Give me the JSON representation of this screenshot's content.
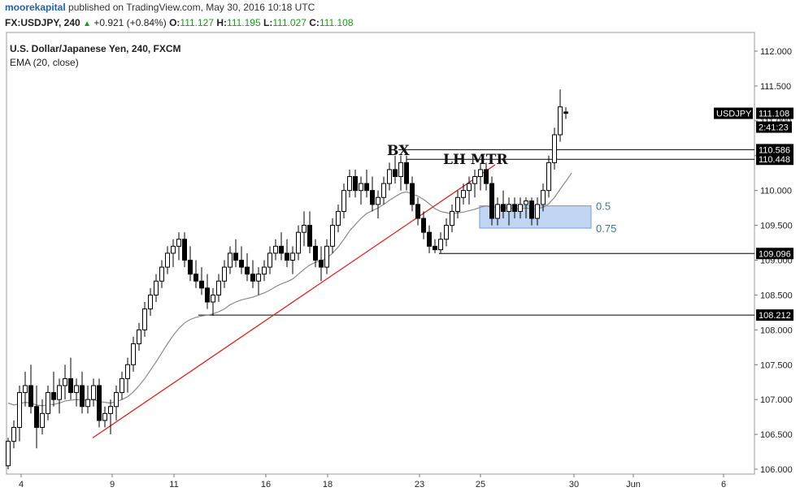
{
  "header": {
    "user": "moorekapital",
    "published_text": "published on TradingView.com, May 30, 2016 10:18 UTC",
    "symbol": "FX:USDJPY, 240",
    "change": "+0.921 (+0.84%)",
    "ohlc": [
      {
        "label": "O:",
        "value": "111.127"
      },
      {
        "label": "H:",
        "value": "111.195"
      },
      {
        "label": "L:",
        "value": "111.027"
      },
      {
        "label": "C:",
        "value": "111.108"
      }
    ]
  },
  "legend": {
    "title": "U.S. Dollar/Japanese Yen, 240, FXCM",
    "indicator": "EMA (20, close)"
  },
  "colors": {
    "up_candle": "#ffffff",
    "down_candle": "#000000",
    "trendline": "#e8201a",
    "ema": "#8a8a8a",
    "fib_zone": "#a9c7ee",
    "fib_text": "#3a75b8",
    "price_label_bg": "#000000"
  },
  "chart_data": {
    "type": "candlestick",
    "title": "U.S. Dollar/Japanese Yen, 240, FXCM",
    "y_range": [
      106.0,
      112.0
    ],
    "y_ticks": [
      "112.000",
      "111.500",
      "111.000",
      "110.500",
      "110.000",
      "109.500",
      "109.000",
      "108.500",
      "108.000",
      "107.500",
      "107.000",
      "106.500",
      "106.000"
    ],
    "x_ticks": [
      "4",
      "9",
      "11",
      "16",
      "18",
      "23",
      "25",
      "30",
      "Jun",
      "6"
    ],
    "price_labels": [
      {
        "text": "USDJPY",
        "value": 111.108,
        "tag": "symbol"
      },
      {
        "text": "111.108",
        "value": 111.108,
        "tag": "last"
      },
      {
        "text": "2:41:23",
        "value": 110.9,
        "tag": "countdown"
      },
      {
        "text": "110.586",
        "value": 110.586,
        "tag": "level"
      },
      {
        "text": "110.448",
        "value": 110.448,
        "tag": "level"
      },
      {
        "text": "109.096",
        "value": 109.096,
        "tag": "level"
      },
      {
        "text": "108.212",
        "value": 108.212,
        "tag": "level"
      }
    ],
    "horizontal_levels": [
      110.586,
      110.448,
      109.096,
      108.212
    ],
    "annotations": [
      {
        "text": "BX"
      },
      {
        "text": "LH MTR"
      }
    ],
    "fib_zone": {
      "top": 109.78,
      "bottom": 109.46,
      "levels": [
        {
          "label": "0.5",
          "value": 109.78
        },
        {
          "label": "0.75",
          "value": 109.46
        }
      ]
    },
    "trendline": {
      "from_value": 106.45,
      "to_value": 110.37
    },
    "series": [
      {
        "name": "USDJPY",
        "ohlc": [
          [
            106.05,
            106.45,
            106.0,
            106.4
          ],
          [
            106.4,
            106.7,
            106.3,
            106.6
          ],
          [
            106.6,
            107.2,
            106.4,
            107.1
          ],
          [
            107.1,
            107.4,
            106.9,
            107.2
          ],
          [
            107.2,
            107.5,
            106.8,
            106.9
          ],
          [
            106.9,
            107.2,
            106.3,
            106.6
          ],
          [
            106.6,
            107.0,
            106.5,
            106.8
          ],
          [
            106.8,
            107.2,
            106.7,
            107.1
          ],
          [
            107.1,
            107.4,
            106.9,
            107.0
          ],
          [
            107.0,
            107.3,
            106.8,
            107.2
          ],
          [
            107.2,
            107.5,
            107.0,
            107.3
          ],
          [
            107.3,
            107.6,
            107.0,
            107.1
          ],
          [
            107.1,
            107.3,
            106.9,
            107.2
          ],
          [
            107.2,
            107.4,
            106.8,
            106.9
          ],
          [
            106.9,
            107.2,
            106.8,
            107.0
          ],
          [
            107.0,
            107.3,
            106.9,
            107.2
          ],
          [
            107.2,
            107.3,
            106.6,
            106.7
          ],
          [
            106.7,
            106.9,
            106.6,
            106.8
          ],
          [
            106.8,
            107.0,
            106.5,
            106.9
          ],
          [
            106.9,
            107.2,
            106.7,
            107.1
          ],
          [
            107.1,
            107.4,
            107.0,
            107.3
          ],
          [
            107.3,
            107.6,
            107.1,
            107.5
          ],
          [
            107.5,
            107.9,
            107.4,
            107.8
          ],
          [
            107.8,
            108.1,
            107.7,
            108.0
          ],
          [
            108.0,
            108.4,
            107.9,
            108.3
          ],
          [
            108.3,
            108.6,
            108.2,
            108.5
          ],
          [
            108.5,
            108.8,
            108.4,
            108.7
          ],
          [
            108.7,
            109.0,
            108.6,
            108.9
          ],
          [
            108.9,
            109.2,
            108.8,
            109.1
          ],
          [
            109.1,
            109.3,
            108.9,
            109.2
          ],
          [
            109.2,
            109.4,
            109.0,
            109.3
          ],
          [
            109.3,
            109.4,
            108.9,
            109.0
          ],
          [
            109.0,
            109.2,
            108.7,
            108.8
          ],
          [
            108.8,
            109.0,
            108.6,
            108.7
          ],
          [
            108.7,
            108.9,
            108.5,
            108.6
          ],
          [
            108.6,
            108.8,
            108.3,
            108.4
          ],
          [
            108.4,
            108.6,
            108.2,
            108.5
          ],
          [
            108.5,
            108.8,
            108.4,
            108.7
          ],
          [
            108.7,
            109.0,
            108.6,
            108.9
          ],
          [
            108.9,
            109.2,
            108.8,
            109.1
          ],
          [
            109.1,
            109.3,
            108.9,
            109.0
          ],
          [
            109.0,
            109.2,
            108.8,
            108.9
          ],
          [
            108.9,
            109.1,
            108.7,
            108.8
          ],
          [
            108.8,
            109.0,
            108.6,
            108.7
          ],
          [
            108.7,
            108.9,
            108.5,
            108.8
          ],
          [
            108.8,
            109.0,
            108.7,
            108.9
          ],
          [
            108.9,
            109.2,
            108.8,
            109.1
          ],
          [
            109.1,
            109.3,
            109.0,
            109.2
          ],
          [
            109.2,
            109.4,
            109.0,
            109.1
          ],
          [
            109.1,
            109.3,
            108.9,
            109.0
          ],
          [
            109.0,
            109.2,
            108.8,
            109.1
          ],
          [
            109.1,
            109.5,
            109.0,
            109.4
          ],
          [
            109.4,
            109.7,
            109.2,
            109.5
          ],
          [
            109.5,
            109.7,
            109.1,
            109.2
          ],
          [
            109.2,
            109.3,
            108.9,
            109.0
          ],
          [
            109.0,
            109.2,
            108.7,
            108.9
          ],
          [
            108.9,
            109.3,
            108.8,
            109.2
          ],
          [
            109.2,
            109.6,
            109.1,
            109.5
          ],
          [
            109.5,
            109.8,
            109.4,
            109.7
          ],
          [
            109.7,
            110.1,
            109.6,
            110.0
          ],
          [
            110.0,
            110.3,
            109.9,
            110.2
          ],
          [
            110.2,
            110.3,
            109.9,
            110.0
          ],
          [
            110.0,
            110.2,
            109.8,
            110.1
          ],
          [
            110.1,
            110.3,
            109.9,
            110.0
          ],
          [
            110.0,
            110.2,
            109.7,
            109.8
          ],
          [
            109.8,
            110.0,
            109.6,
            109.9
          ],
          [
            109.9,
            110.2,
            109.8,
            110.1
          ],
          [
            110.1,
            110.4,
            110.0,
            110.3
          ],
          [
            110.3,
            110.5,
            110.1,
            110.2
          ],
          [
            110.2,
            110.5,
            110.0,
            110.4
          ],
          [
            110.4,
            110.5,
            110.0,
            110.1
          ],
          [
            110.1,
            110.2,
            109.7,
            109.8
          ],
          [
            109.8,
            109.9,
            109.5,
            109.6
          ],
          [
            109.6,
            109.7,
            109.3,
            109.4
          ],
          [
            109.4,
            109.5,
            109.1,
            109.2
          ],
          [
            109.2,
            109.3,
            109.1,
            109.15
          ],
          [
            109.15,
            109.4,
            109.1,
            109.3
          ],
          [
            109.3,
            109.6,
            109.2,
            109.5
          ],
          [
            109.5,
            109.8,
            109.4,
            109.7
          ],
          [
            109.7,
            110.0,
            109.6,
            109.9
          ],
          [
            109.9,
            110.1,
            109.8,
            110.0
          ],
          [
            110.0,
            110.2,
            109.8,
            110.1
          ],
          [
            110.1,
            110.3,
            109.9,
            110.2
          ],
          [
            110.2,
            110.4,
            110.0,
            110.3
          ],
          [
            110.3,
            110.4,
            110.0,
            110.1
          ],
          [
            110.1,
            110.2,
            109.5,
            109.6
          ],
          [
            109.6,
            109.9,
            109.5,
            109.8
          ],
          [
            109.8,
            110.0,
            109.6,
            109.7
          ],
          [
            109.7,
            109.9,
            109.5,
            109.8
          ],
          [
            109.8,
            109.9,
            109.6,
            109.7
          ],
          [
            109.7,
            109.9,
            109.6,
            109.8
          ],
          [
            109.8,
            109.9,
            109.6,
            109.85
          ],
          [
            109.85,
            109.9,
            109.5,
            109.6
          ],
          [
            109.6,
            109.9,
            109.5,
            109.8
          ],
          [
            109.8,
            110.1,
            109.7,
            110.0
          ],
          [
            110.0,
            110.5,
            109.9,
            110.4
          ],
          [
            110.4,
            110.9,
            110.3,
            110.8
          ],
          [
            110.8,
            111.45,
            110.7,
            111.2
          ],
          [
            111.127,
            111.195,
            111.027,
            111.108
          ]
        ]
      },
      {
        "name": "EMA (20, close)",
        "values": [
          106.95,
          106.92,
          106.94,
          106.96,
          106.95,
          106.92,
          106.91,
          106.93,
          106.93,
          106.95,
          106.98,
          106.99,
          107.0,
          106.99,
          106.99,
          107.0,
          106.97,
          106.96,
          106.95,
          106.97,
          107.0,
          107.04,
          107.11,
          107.2,
          107.3,
          107.42,
          107.54,
          107.67,
          107.8,
          107.92,
          108.02,
          108.1,
          108.15,
          108.18,
          108.2,
          108.21,
          108.23,
          108.26,
          108.3,
          108.36,
          108.4,
          108.43,
          108.45,
          108.47,
          108.5,
          108.53,
          108.57,
          108.62,
          108.66,
          108.69,
          108.73,
          108.8,
          108.87,
          108.93,
          108.97,
          108.99,
          109.03,
          109.1,
          109.19,
          109.3,
          109.42,
          109.51,
          109.6,
          109.67,
          109.71,
          109.75,
          109.8,
          109.86,
          109.91,
          109.96,
          109.98,
          109.95,
          109.92,
          109.87,
          109.81,
          109.74,
          109.7,
          109.68,
          109.67,
          109.68,
          109.69,
          109.71,
          109.73,
          109.76,
          109.78,
          109.76,
          109.76,
          109.75,
          109.75,
          109.74,
          109.74,
          109.75,
          109.73,
          109.74,
          109.76,
          109.81,
          109.9,
          110.02,
          110.13,
          110.25
        ]
      }
    ]
  }
}
